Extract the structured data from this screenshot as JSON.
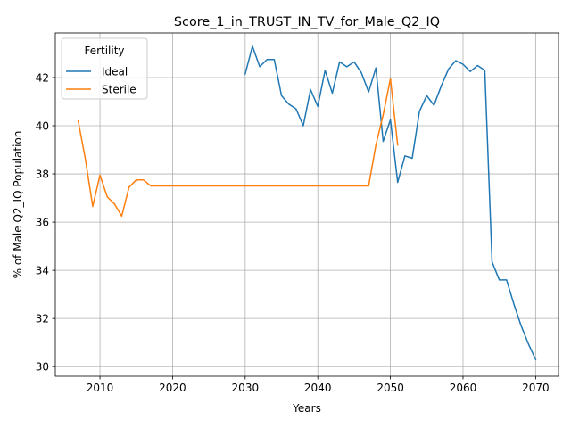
{
  "chart_data": {
    "type": "line",
    "title": "Score_1_in_TRUST_IN_TV_for_Male_Q2_IQ",
    "xlabel": "Years",
    "ylabel": "% of Male Q2_IQ Population",
    "xlim": [
      2003.85,
      2073.15
    ],
    "ylim": [
      29.6,
      43.85
    ],
    "xticks": [
      2010,
      2020,
      2030,
      2040,
      2050,
      2060,
      2070
    ],
    "yticks": [
      30,
      32,
      34,
      36,
      38,
      40,
      42
    ],
    "grid": true,
    "legend": {
      "title": "Fertility",
      "placement": "top-left"
    },
    "series": [
      {
        "name": "Ideal",
        "color": "#1f77b4",
        "x": [
          2030,
          2031,
          2032,
          2033,
          2034,
          2035,
          2036,
          2037,
          2038,
          2039,
          2040,
          2041,
          2042,
          2043,
          2044,
          2045,
          2046,
          2047,
          2048,
          2049,
          2050,
          2051,
          2052,
          2053,
          2054,
          2055,
          2056,
          2057,
          2058,
          2059,
          2060,
          2061,
          2062,
          2063,
          2064,
          2065,
          2066,
          2067,
          2068,
          2069,
          2070
        ],
        "y": [
          42.15,
          43.3,
          42.45,
          42.75,
          42.75,
          41.25,
          40.9,
          40.7,
          40.0,
          41.5,
          40.8,
          42.3,
          41.35,
          42.65,
          42.45,
          42.65,
          42.2,
          41.4,
          42.4,
          39.35,
          40.25,
          37.65,
          38.75,
          38.65,
          40.6,
          41.25,
          40.85,
          41.65,
          42.35,
          42.7,
          42.55,
          42.25,
          42.5,
          42.3,
          34.35,
          33.6,
          33.6,
          32.6,
          31.7,
          30.95,
          30.3
        ]
      },
      {
        "name": "Sterile",
        "color": "#ff7f0e",
        "x": [
          2007,
          2008,
          2009,
          2010,
          2011,
          2012,
          2013,
          2014,
          2015,
          2016,
          2017,
          2018,
          2019,
          2020,
          2021,
          2022,
          2023,
          2024,
          2025,
          2026,
          2027,
          2028,
          2029,
          2030,
          2031,
          2032,
          2033,
          2034,
          2035,
          2036,
          2037,
          2038,
          2039,
          2040,
          2041,
          2042,
          2043,
          2044,
          2045,
          2046,
          2047,
          2048,
          2049,
          2050,
          2051
        ],
        "y": [
          40.2,
          38.6,
          36.65,
          37.95,
          37.05,
          36.75,
          36.25,
          37.45,
          37.75,
          37.75,
          37.5,
          37.5,
          37.5,
          37.5,
          37.5,
          37.5,
          37.5,
          37.5,
          37.5,
          37.5,
          37.5,
          37.5,
          37.5,
          37.5,
          37.5,
          37.5,
          37.5,
          37.5,
          37.5,
          37.5,
          37.5,
          37.5,
          37.5,
          37.5,
          37.5,
          37.5,
          37.5,
          37.5,
          37.5,
          37.5,
          37.5,
          39.2,
          40.45,
          41.95,
          39.2
        ]
      }
    ]
  }
}
